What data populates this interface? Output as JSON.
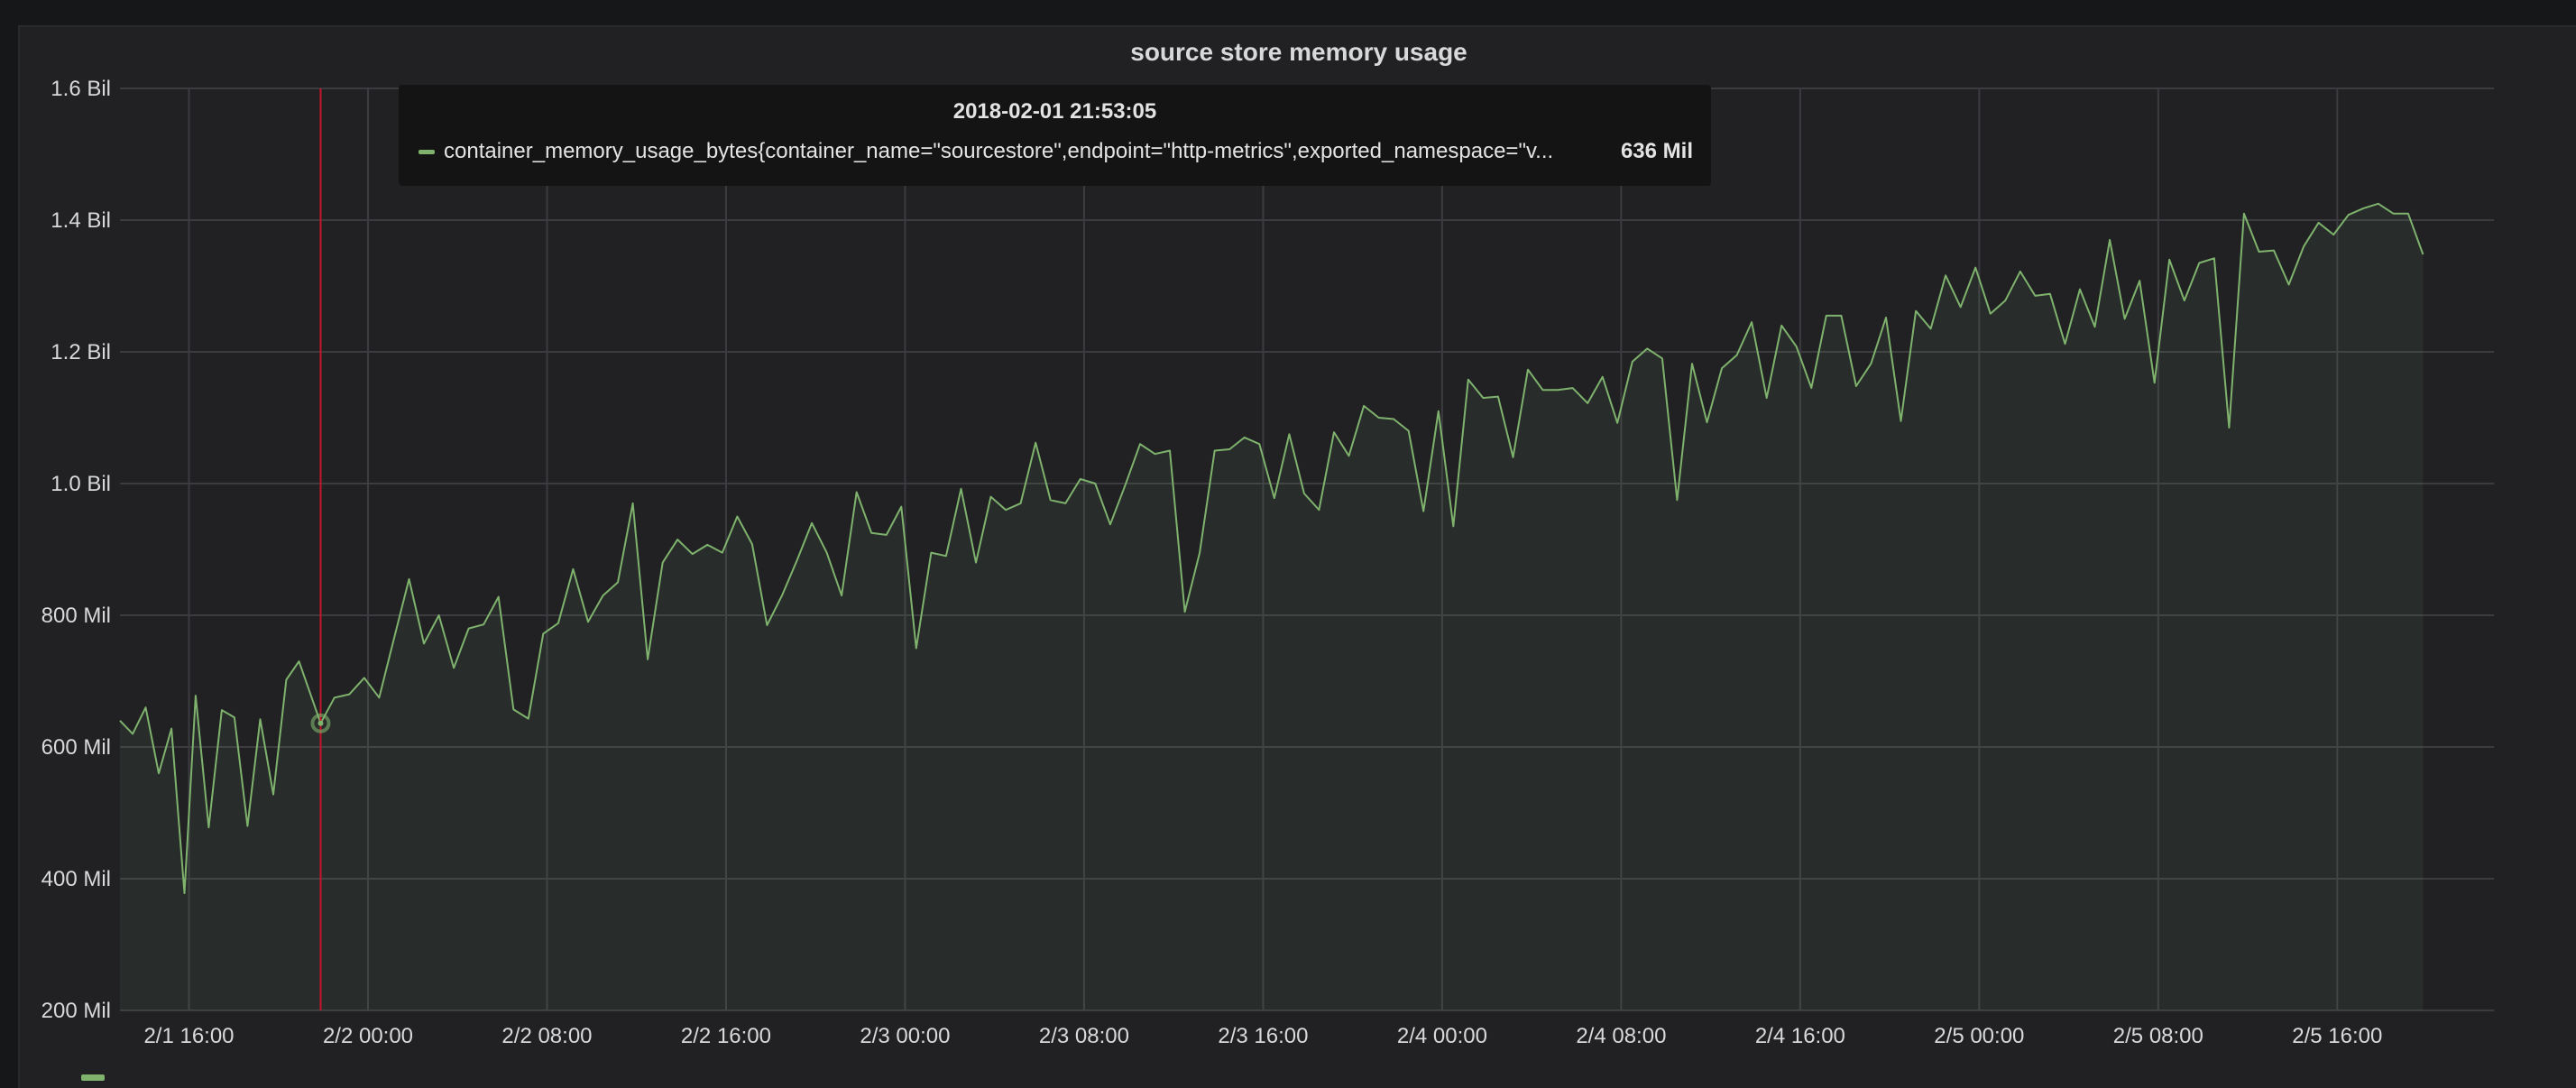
{
  "panel": {
    "title": "source store memory usage"
  },
  "colors": {
    "series": "#7eb26d",
    "cursor": "#c4162a",
    "grid": "#3c3c40",
    "text": "#d8d9da",
    "background": "#212124"
  },
  "tooltip": {
    "time": "2018-02-01 21:53:05",
    "series_label": "container_memory_usage_bytes{container_name=\"sourcestore\",endpoint=\"http-metrics\",exported_namespace=\"v...",
    "value": "636 Mil"
  },
  "chart_data": {
    "type": "area",
    "title": "source store memory usage",
    "xlabel": "",
    "ylabel": "",
    "grid": true,
    "legend": "bottom-left",
    "y_unit": "bytes",
    "xlim": [
      "2018-02-01 12:55",
      "2018-02-05 23:00"
    ],
    "ylim": [
      200000000,
      1600000000
    ],
    "y_ticks": [
      {
        "value": 200000000,
        "label": "200 Mil"
      },
      {
        "value": 400000000,
        "label": "400 Mil"
      },
      {
        "value": 600000000,
        "label": "600 Mil"
      },
      {
        "value": 800000000,
        "label": "800 Mil"
      },
      {
        "value": 1000000000,
        "label": "1.0 Bil"
      },
      {
        "value": 1200000000,
        "label": "1.2 Bil"
      },
      {
        "value": 1400000000,
        "label": "1.4 Bil"
      },
      {
        "value": 1600000000,
        "label": "1.6 Bil"
      }
    ],
    "x_ticks": [
      {
        "value": "2018-02-01 16:00",
        "label": "2/1 16:00"
      },
      {
        "value": "2018-02-02 00:00",
        "label": "2/2 00:00"
      },
      {
        "value": "2018-02-02 08:00",
        "label": "2/2 08:00"
      },
      {
        "value": "2018-02-02 16:00",
        "label": "2/2 16:00"
      },
      {
        "value": "2018-02-03 00:00",
        "label": "2/3 00:00"
      },
      {
        "value": "2018-02-03 08:00",
        "label": "2/3 08:00"
      },
      {
        "value": "2018-02-03 16:00",
        "label": "2/3 16:00"
      },
      {
        "value": "2018-02-04 00:00",
        "label": "2/4 00:00"
      },
      {
        "value": "2018-02-04 08:00",
        "label": "2/4 08:00"
      },
      {
        "value": "2018-02-04 16:00",
        "label": "2/4 16:00"
      },
      {
        "value": "2018-02-05 00:00",
        "label": "2/5 00:00"
      },
      {
        "value": "2018-02-05 08:00",
        "label": "2/5 08:00"
      },
      {
        "value": "2018-02-05 16:00",
        "label": "2/5 16:00"
      }
    ],
    "cursor": {
      "x": "2018-02-01 21:53",
      "y": 636000000
    },
    "series": [
      {
        "values": [
          [
            "2018-02-01 12:55",
            640
          ],
          [
            "2018-02-01 13:29",
            620
          ],
          [
            "2018-02-01 14:04",
            660
          ],
          [
            "2018-02-01 14:39",
            560
          ],
          [
            "2018-02-01 15:13",
            628
          ],
          [
            "2018-02-01 15:48",
            378
          ],
          [
            "2018-02-01 16:18",
            678
          ],
          [
            "2018-02-01 16:53",
            478
          ],
          [
            "2018-02-01 17:28",
            656
          ],
          [
            "2018-02-01 18:02",
            645
          ],
          [
            "2018-02-01 18:37",
            480
          ],
          [
            "2018-02-01 19:11",
            642
          ],
          [
            "2018-02-01 19:46",
            528
          ],
          [
            "2018-02-01 20:21",
            702
          ],
          [
            "2018-02-01 20:55",
            730
          ],
          [
            "2018-02-01 21:53",
            636
          ],
          [
            "2018-02-01 22:30",
            675
          ],
          [
            "2018-02-01 23:10",
            680
          ],
          [
            "2018-02-01 23:50",
            705
          ],
          [
            "2018-02-02 00:30",
            675
          ],
          [
            "2018-02-02 01:10",
            765
          ],
          [
            "2018-02-02 01:50",
            855
          ],
          [
            "2018-02-02 02:30",
            757
          ],
          [
            "2018-02-02 03:10",
            800
          ],
          [
            "2018-02-02 03:50",
            720
          ],
          [
            "2018-02-02 04:30",
            780
          ],
          [
            "2018-02-02 05:10",
            786
          ],
          [
            "2018-02-02 05:50",
            828
          ],
          [
            "2018-02-02 06:30",
            657
          ],
          [
            "2018-02-02 07:10",
            643
          ],
          [
            "2018-02-02 07:50",
            772
          ],
          [
            "2018-02-02 08:30",
            788
          ],
          [
            "2018-02-02 09:10",
            870
          ],
          [
            "2018-02-02 09:50",
            790
          ],
          [
            "2018-02-02 10:30",
            830
          ],
          [
            "2018-02-02 11:10",
            850
          ],
          [
            "2018-02-02 11:50",
            970
          ],
          [
            "2018-02-02 12:30",
            733
          ],
          [
            "2018-02-02 13:10",
            880
          ],
          [
            "2018-02-02 13:50",
            915
          ],
          [
            "2018-02-02 14:30",
            893
          ],
          [
            "2018-02-02 15:10",
            907
          ],
          [
            "2018-02-02 15:50",
            895
          ],
          [
            "2018-02-02 16:30",
            950
          ],
          [
            "2018-02-02 17:10",
            908
          ],
          [
            "2018-02-02 17:50",
            785
          ],
          [
            "2018-02-02 18:30",
            830
          ],
          [
            "2018-02-02 19:10",
            883
          ],
          [
            "2018-02-02 19:50",
            940
          ],
          [
            "2018-02-02 20:30",
            895
          ],
          [
            "2018-02-02 21:10",
            830
          ],
          [
            "2018-02-02 21:50",
            987
          ],
          [
            "2018-02-02 22:30",
            925
          ],
          [
            "2018-02-02 23:10",
            922
          ],
          [
            "2018-02-02 23:50",
            965
          ],
          [
            "2018-02-03 00:30",
            750
          ],
          [
            "2018-02-03 01:10",
            895
          ],
          [
            "2018-02-03 01:50",
            890
          ],
          [
            "2018-02-03 02:30",
            992
          ],
          [
            "2018-02-03 03:10",
            880
          ],
          [
            "2018-02-03 03:50",
            980
          ],
          [
            "2018-02-03 04:30",
            960
          ],
          [
            "2018-02-03 05:10",
            970
          ],
          [
            "2018-02-03 05:50",
            1062
          ],
          [
            "2018-02-03 06:30",
            975
          ],
          [
            "2018-02-03 07:10",
            970
          ],
          [
            "2018-02-03 07:50",
            1007
          ],
          [
            "2018-02-03 08:30",
            1000
          ],
          [
            "2018-02-03 09:10",
            938
          ],
          [
            "2018-02-03 09:50",
            997
          ],
          [
            "2018-02-03 10:30",
            1060
          ],
          [
            "2018-02-03 11:10",
            1045
          ],
          [
            "2018-02-03 11:50",
            1050
          ],
          [
            "2018-02-03 12:30",
            805
          ],
          [
            "2018-02-03 13:10",
            895
          ],
          [
            "2018-02-03 13:50",
            1050
          ],
          [
            "2018-02-03 14:30",
            1052
          ],
          [
            "2018-02-03 15:10",
            1070
          ],
          [
            "2018-02-03 15:50",
            1060
          ],
          [
            "2018-02-03 16:30",
            978
          ],
          [
            "2018-02-03 17:10",
            1075
          ],
          [
            "2018-02-03 17:50",
            985
          ],
          [
            "2018-02-03 18:30",
            960
          ],
          [
            "2018-02-03 19:10",
            1078
          ],
          [
            "2018-02-03 19:50",
            1042
          ],
          [
            "2018-02-03 20:30",
            1118
          ],
          [
            "2018-02-03 21:10",
            1100
          ],
          [
            "2018-02-03 21:50",
            1098
          ],
          [
            "2018-02-03 22:30",
            1080
          ],
          [
            "2018-02-03 23:10",
            958
          ],
          [
            "2018-02-03 23:50",
            1110
          ],
          [
            "2018-02-04 00:30",
            935
          ],
          [
            "2018-02-04 01:10",
            1158
          ],
          [
            "2018-02-04 01:50",
            1130
          ],
          [
            "2018-02-04 02:30",
            1132
          ],
          [
            "2018-02-04 03:10",
            1040
          ],
          [
            "2018-02-04 03:50",
            1173
          ],
          [
            "2018-02-04 04:30",
            1142
          ],
          [
            "2018-02-04 05:10",
            1142
          ],
          [
            "2018-02-04 05:50",
            1145
          ],
          [
            "2018-02-04 06:30",
            1122
          ],
          [
            "2018-02-04 07:10",
            1162
          ],
          [
            "2018-02-04 07:50",
            1092
          ],
          [
            "2018-02-04 08:30",
            1185
          ],
          [
            "2018-02-04 09:10",
            1205
          ],
          [
            "2018-02-04 09:50",
            1190
          ],
          [
            "2018-02-04 10:30",
            975
          ],
          [
            "2018-02-04 11:10",
            1182
          ],
          [
            "2018-02-04 11:50",
            1093
          ],
          [
            "2018-02-04 12:30",
            1175
          ],
          [
            "2018-02-04 13:10",
            1195
          ],
          [
            "2018-02-04 13:50",
            1245
          ],
          [
            "2018-02-04 14:30",
            1130
          ],
          [
            "2018-02-04 15:10",
            1240
          ],
          [
            "2018-02-04 15:50",
            1208
          ],
          [
            "2018-02-04 16:30",
            1145
          ],
          [
            "2018-02-04 17:10",
            1255
          ],
          [
            "2018-02-04 17:50",
            1255
          ],
          [
            "2018-02-04 18:30",
            1148
          ],
          [
            "2018-02-04 19:10",
            1182
          ],
          [
            "2018-02-04 19:50",
            1252
          ],
          [
            "2018-02-04 20:30",
            1095
          ],
          [
            "2018-02-04 21:10",
            1262
          ],
          [
            "2018-02-04 21:50",
            1235
          ],
          [
            "2018-02-04 22:30",
            1316
          ],
          [
            "2018-02-04 23:10",
            1268
          ],
          [
            "2018-02-04 23:50",
            1328
          ],
          [
            "2018-02-05 00:30",
            1258
          ],
          [
            "2018-02-05 01:10",
            1278
          ],
          [
            "2018-02-05 01:50",
            1322
          ],
          [
            "2018-02-05 02:30",
            1285
          ],
          [
            "2018-02-05 03:10",
            1288
          ],
          [
            "2018-02-05 03:50",
            1212
          ],
          [
            "2018-02-05 04:30",
            1295
          ],
          [
            "2018-02-05 05:10",
            1238
          ],
          [
            "2018-02-05 05:50",
            1370
          ],
          [
            "2018-02-05 06:30",
            1250
          ],
          [
            "2018-02-05 07:10",
            1308
          ],
          [
            "2018-02-05 07:50",
            1153
          ],
          [
            "2018-02-05 08:30",
            1340
          ],
          [
            "2018-02-05 09:10",
            1278
          ],
          [
            "2018-02-05 09:50",
            1335
          ],
          [
            "2018-02-05 10:30",
            1342
          ],
          [
            "2018-02-05 11:10",
            1085
          ],
          [
            "2018-02-05 11:50",
            1410
          ],
          [
            "2018-02-05 12:30",
            1352
          ],
          [
            "2018-02-05 13:10",
            1354
          ],
          [
            "2018-02-05 13:50",
            1302
          ],
          [
            "2018-02-05 14:30",
            1360
          ],
          [
            "2018-02-05 15:10",
            1396
          ],
          [
            "2018-02-05 15:50",
            1378
          ],
          [
            "2018-02-05 16:30",
            1408
          ],
          [
            "2018-02-05 17:10",
            1418
          ],
          [
            "2018-02-05 17:50",
            1425
          ],
          [
            "2018-02-05 18:30",
            1410
          ],
          [
            "2018-02-05 19:10",
            1410
          ],
          [
            "2018-02-05 19:50",
            1348
          ]
        ],
        "value_scale": 1000000
      }
    ]
  }
}
